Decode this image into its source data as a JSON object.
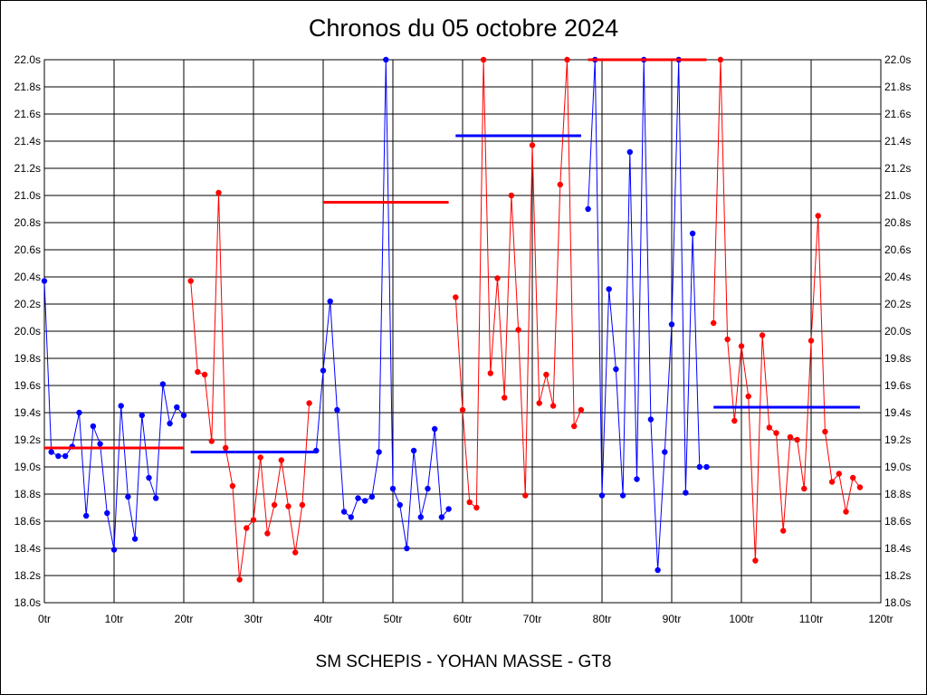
{
  "chart_data": {
    "type": "line",
    "title": "Chronos du 05 octobre 2024",
    "footer": "SM SCHEPIS - YOHAN MASSE - GT8",
    "xlabel": "",
    "ylabel": "",
    "xlim": [
      0,
      120
    ],
    "ylim": [
      18.0,
      22.0
    ],
    "x_ticks": [
      0,
      10,
      20,
      30,
      40,
      50,
      60,
      70,
      80,
      90,
      100,
      110,
      120
    ],
    "x_tick_labels": [
      "0tr",
      "10tr",
      "20tr",
      "30tr",
      "40tr",
      "50tr",
      "60tr",
      "70tr",
      "80tr",
      "90tr",
      "100tr",
      "110tr",
      "120tr"
    ],
    "y_ticks": [
      18.0,
      18.2,
      18.4,
      18.6,
      18.8,
      19.0,
      19.2,
      19.4,
      19.6,
      19.8,
      20.0,
      20.2,
      20.4,
      20.6,
      20.8,
      21.0,
      21.2,
      21.4,
      21.6,
      21.8,
      22.0
    ],
    "y_tick_labels": [
      "18.0s",
      "18.2s",
      "18.4s",
      "18.6s",
      "18.8s",
      "19.0s",
      "19.2s",
      "19.4s",
      "19.6s",
      "19.8s",
      "20.0s",
      "20.2s",
      "20.4s",
      "20.6s",
      "20.8s",
      "21.0s",
      "21.2s",
      "21.4s",
      "21.6s",
      "21.8s",
      "22.0s"
    ],
    "grid": true,
    "series": [
      {
        "color": "#0000ff",
        "x": [
          0,
          1,
          2,
          3,
          4,
          5,
          6,
          7,
          8,
          9,
          10,
          11,
          12,
          13,
          14,
          15,
          16,
          17,
          18,
          19,
          20
        ],
        "y": [
          20.37,
          19.11,
          19.08,
          19.08,
          19.15,
          19.4,
          18.64,
          19.3,
          19.17,
          18.66,
          18.39,
          19.45,
          18.78,
          18.47,
          19.38,
          18.92,
          18.77,
          19.61,
          19.32,
          19.44,
          19.38
        ],
        "avg": 19.14
      },
      {
        "color": "#ff0000",
        "x": [
          21,
          22,
          23,
          24,
          25,
          26,
          27,
          28,
          29,
          30,
          31,
          32,
          33,
          34,
          35,
          36,
          37,
          38
        ],
        "y": [
          20.37,
          19.7,
          19.68,
          19.19,
          21.02,
          19.14,
          18.86,
          18.17,
          18.55,
          18.61,
          19.07,
          18.51,
          18.72,
          19.05,
          18.71,
          18.37,
          18.72,
          19.47
        ],
        "avg": 19.11
      },
      {
        "color": "#0000ff",
        "x": [
          39,
          40,
          41,
          42,
          43,
          44,
          45,
          46,
          47,
          48,
          49,
          50,
          51,
          52,
          53,
          54,
          55,
          56,
          57,
          58
        ],
        "y": [
          19.12,
          19.71,
          20.22,
          19.42,
          18.67,
          18.63,
          18.77,
          18.75,
          18.78,
          19.11,
          22.0,
          18.84,
          18.72,
          18.4,
          19.12,
          18.63,
          18.84,
          19.28,
          18.63,
          18.69
        ],
        "avg": 20.95
      },
      {
        "color": "#ff0000",
        "x": [
          59,
          60,
          61,
          62,
          63,
          64,
          65,
          66,
          67,
          68,
          69,
          70,
          71,
          72,
          73,
          74,
          75,
          76,
          77
        ],
        "y": [
          20.25,
          19.42,
          18.74,
          18.7,
          22.0,
          19.69,
          20.39,
          19.51,
          21.0,
          20.01,
          18.79,
          21.37,
          19.47,
          19.68,
          19.45,
          21.08,
          22.0,
          19.3,
          19.42
        ],
        "avg": 21.44
      },
      {
        "color": "#0000ff",
        "x": [
          78,
          79,
          80,
          81,
          82,
          83,
          84,
          85,
          86,
          87,
          88,
          89,
          90,
          91,
          92,
          93,
          94,
          95
        ],
        "y": [
          20.9,
          22.0,
          18.79,
          20.31,
          19.72,
          18.79,
          21.32,
          18.91,
          22.0,
          19.35,
          18.24,
          19.11,
          20.05,
          22.0,
          18.81,
          20.72,
          19.0,
          19.0
        ],
        "avg": 22.0
      },
      {
        "color": "#ff0000",
        "x": [
          96,
          97,
          98,
          99,
          100,
          101,
          102,
          103,
          104,
          105,
          106,
          107,
          108,
          109,
          110,
          111,
          112,
          113,
          114,
          115,
          116,
          117
        ],
        "y": [
          20.06,
          22.0,
          19.94,
          19.34,
          19.89,
          19.52,
          18.31,
          19.97,
          19.29,
          19.25,
          18.53,
          19.22,
          19.2,
          18.84,
          19.93,
          20.85,
          19.26,
          18.89,
          18.95,
          18.67,
          18.92,
          18.85
        ],
        "avg": 19.44
      }
    ],
    "averages": [
      {
        "color": "#ff0000",
        "x": [
          0,
          20
        ],
        "y": 19.14
      },
      {
        "color": "#0000ff",
        "x": [
          21,
          39
        ],
        "y": 19.11
      },
      {
        "color": "#ff0000",
        "x": [
          40,
          58
        ],
        "y": 20.95
      },
      {
        "color": "#0000ff",
        "x": [
          59,
          77
        ],
        "y": 21.44
      },
      {
        "color": "#ff0000",
        "x": [
          78,
          95
        ],
        "y": 22.0
      },
      {
        "color": "#0000ff",
        "x": [
          96,
          117
        ],
        "y": 19.44
      }
    ]
  }
}
